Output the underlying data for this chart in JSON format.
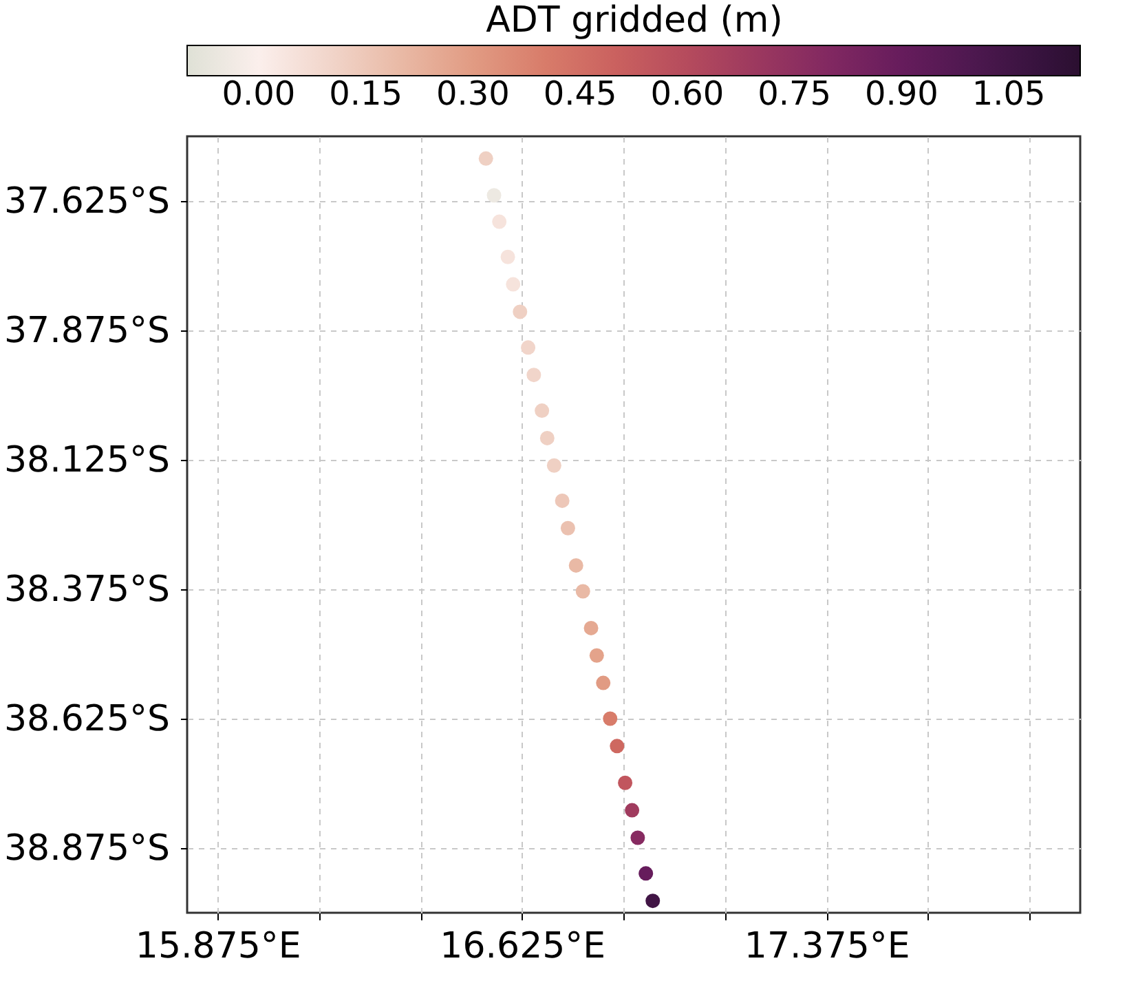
{
  "chart_data": {
    "type": "scatter",
    "clabel": "ADT gridded (m)",
    "x": [
      16.536,
      16.556,
      16.569,
      16.59,
      16.603,
      16.62,
      16.64,
      16.654,
      16.674,
      16.687,
      16.704,
      16.724,
      16.738,
      16.758,
      16.775,
      16.795,
      16.809,
      16.825,
      16.842,
      16.859,
      16.879,
      16.896,
      16.91,
      16.93,
      16.947
    ],
    "values": [
      -37.543,
      -37.614,
      -37.665,
      -37.733,
      -37.786,
      -37.839,
      -37.908,
      -37.961,
      -38.03,
      -38.083,
      -38.136,
      -38.204,
      -38.257,
      -38.329,
      -38.379,
      -38.45,
      -38.503,
      -38.556,
      -38.625,
      -38.678,
      -38.749,
      -38.802,
      -38.855,
      -38.924,
      -38.977
    ],
    "cvalues": [
      0.12,
      -0.05,
      0.05,
      0.05,
      0.05,
      0.12,
      0.1,
      0.1,
      0.12,
      0.12,
      0.12,
      0.15,
      0.17,
      0.2,
      0.2,
      0.25,
      0.27,
      0.3,
      0.4,
      0.47,
      0.55,
      0.68,
      0.78,
      0.9,
      1.05
    ],
    "clim": [
      -0.1,
      1.15
    ],
    "cticks": [
      {
        "value": 0,
        "label": "0.00"
      },
      {
        "value": 0.15,
        "label": "0.15"
      },
      {
        "value": 0.3,
        "label": "0.30"
      },
      {
        "value": 0.45,
        "label": "0.45"
      },
      {
        "value": 0.6,
        "label": "0.60"
      },
      {
        "value": 0.75,
        "label": "0.75"
      },
      {
        "value": 0.9,
        "label": "0.90"
      },
      {
        "value": 1.05,
        "label": "1.05"
      }
    ],
    "xlim": [
      15.8,
      18.0
    ],
    "ylim": [
      -39.0,
      -37.5
    ],
    "xticks": [
      {
        "value": 15.875,
        "label": "15.875°E"
      },
      {
        "value": 16.125,
        "label": null
      },
      {
        "value": 16.375,
        "label": null
      },
      {
        "value": 16.625,
        "label": "16.625°E"
      },
      {
        "value": 16.875,
        "label": null
      },
      {
        "value": 17.125,
        "label": null
      },
      {
        "value": 17.375,
        "label": "17.375°E"
      },
      {
        "value": 17.625,
        "label": null
      },
      {
        "value": 17.875,
        "label": null
      }
    ],
    "yticks": [
      {
        "value": -37.625,
        "label": "37.625°S"
      },
      {
        "value": -37.875,
        "label": "37.875°S"
      },
      {
        "value": -38.125,
        "label": "38.125°S"
      },
      {
        "value": -38.375,
        "label": "38.375°S"
      },
      {
        "value": -38.625,
        "label": "38.625°S"
      },
      {
        "value": -38.875,
        "label": "38.875°S"
      }
    ],
    "grid": true,
    "marker": "circle"
  }
}
